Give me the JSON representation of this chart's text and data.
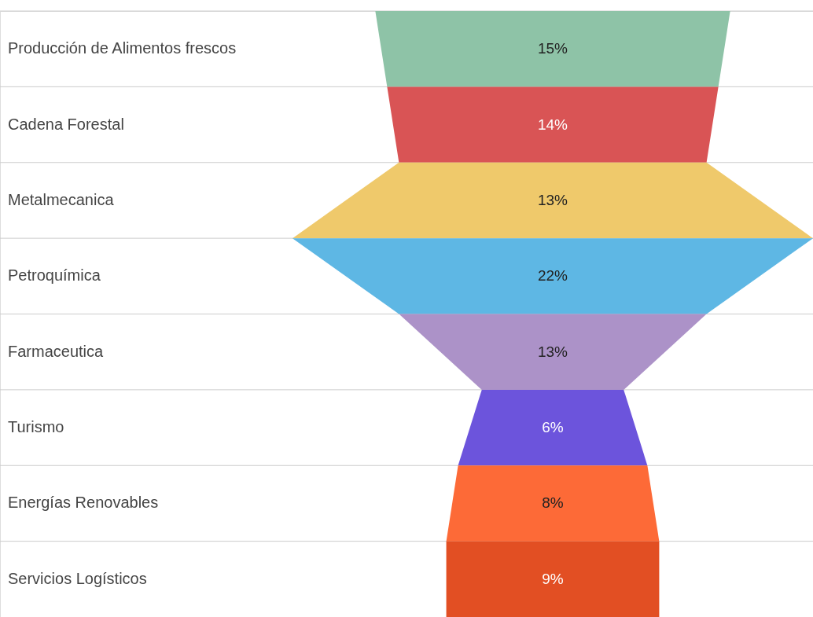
{
  "chart_data": {
    "type": "other",
    "categories": [
      "Producción de Alimentos frescos",
      "Cadena Forestal",
      "Metalmecanica",
      "Petroquímica",
      "Farmaceutica",
      "Turismo",
      "Energías Renovables",
      "Servicios Logísticos"
    ],
    "values": [
      15,
      14,
      13,
      22,
      13,
      6,
      8,
      9
    ],
    "value_labels": [
      "15%",
      "14%",
      "13%",
      "22%",
      "13%",
      "6%",
      "8%",
      "9%"
    ],
    "colors": [
      "#8ec3a7",
      "#d95455",
      "#efc96b",
      "#5eb7e4",
      "#ac92c8",
      "#6c54dc",
      "#fd6a37",
      "#e24f23"
    ]
  }
}
